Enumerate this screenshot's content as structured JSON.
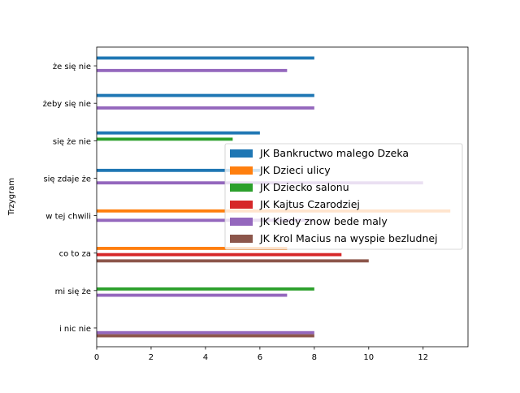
{
  "chart_data": {
    "type": "bar",
    "orientation": "horizontal",
    "title": "",
    "xlabel": "",
    "ylabel": "Trzygram",
    "xlim": [
      0,
      13.65
    ],
    "xticks": [
      0,
      2,
      4,
      6,
      8,
      10,
      12
    ],
    "categories": [
      "i nic nie",
      "mi się że",
      "co to za",
      "w tej chwili",
      "się zdaje że",
      "się że nie",
      "żeby się nie",
      "że się nie"
    ],
    "legend_position": "center-right",
    "series": [
      {
        "name": "JK Bankructwo malego Dzeka",
        "color": "#1f77b4",
        "values": [
          0,
          0,
          0,
          0,
          6,
          6,
          8,
          8
        ]
      },
      {
        "name": "JK Dzieci ulicy",
        "color": "#ff7f0e",
        "values": [
          0,
          0,
          7,
          13,
          0,
          0,
          0,
          0
        ]
      },
      {
        "name": "JK Dziecko salonu",
        "color": "#2ca02c",
        "values": [
          0,
          8,
          0,
          0,
          0,
          5,
          0,
          0
        ]
      },
      {
        "name": "JK Kajtus Czarodziej",
        "color": "#d62728",
        "values": [
          0,
          0,
          9,
          0,
          0,
          0,
          0,
          0
        ]
      },
      {
        "name": "JK Kiedy znow bede maly",
        "color": "#9467bd",
        "values": [
          8,
          7,
          0,
          8,
          12,
          0,
          8,
          7
        ]
      },
      {
        "name": "JK Krol Macius na wyspie bezludnej",
        "color": "#8c564b",
        "values": [
          8,
          0,
          10,
          0,
          0,
          0,
          0,
          0
        ]
      }
    ]
  }
}
